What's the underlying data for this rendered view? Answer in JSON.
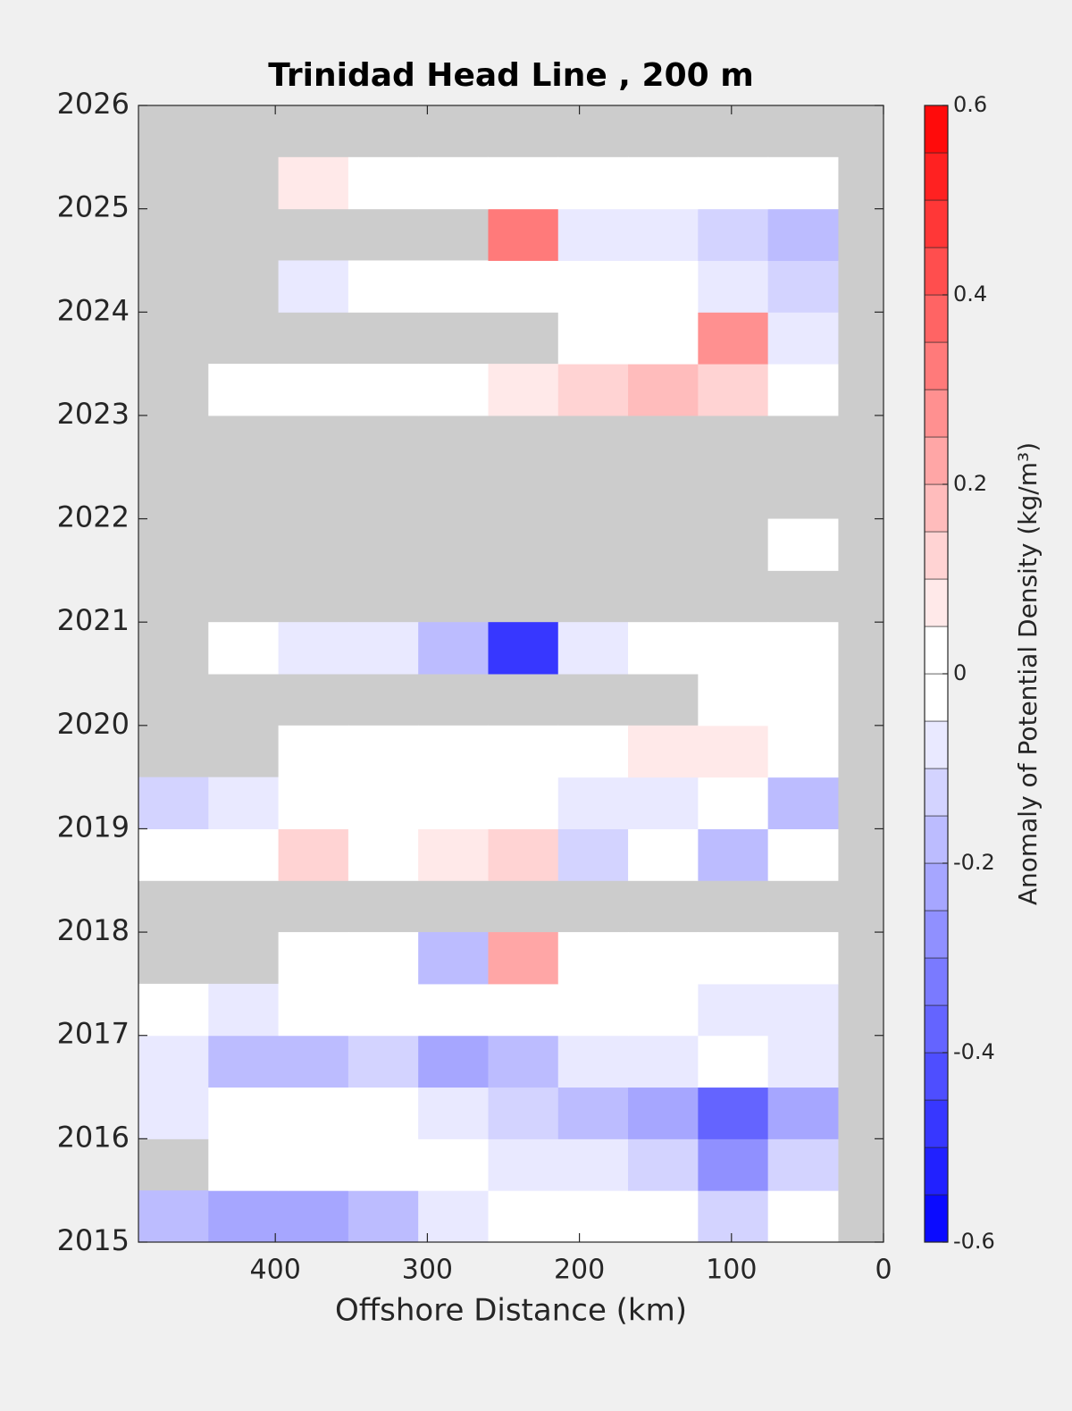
{
  "chart_data": {
    "type": "contour",
    "title": "Trinidad Head Line , 200 m",
    "xlabel": "Offshore Distance (km)",
    "colorbar_label": "Anomaly of Potential Density (kg/m³)",
    "xlim": [
      490,
      0
    ],
    "xticks": [
      400,
      300,
      200,
      100,
      0
    ],
    "ylim": [
      2015,
      2026
    ],
    "yticks": [
      2015,
      2016,
      2017,
      2018,
      2019,
      2020,
      2021,
      2022,
      2023,
      2024,
      2025,
      2026
    ],
    "clim": [
      -0.6,
      0.6
    ],
    "cticks": [
      -0.6,
      -0.4,
      -0.2,
      0,
      0.2,
      0.4,
      0.6
    ],
    "levels": 24,
    "colormap": [
      "#0000ff",
      "#ffffff",
      "#ff0000"
    ],
    "missing_color": "#cccccc",
    "x": [
      467,
      421,
      375,
      329,
      283,
      237,
      191,
      145,
      99,
      53
    ],
    "y": [
      2015.25,
      2015.75,
      2016.25,
      2016.75,
      2017.25,
      2017.75,
      2018.25,
      2018.75,
      2019.25,
      2019.75,
      2020.25,
      2020.75,
      2021.25,
      2021.75,
      2022.25,
      2022.75,
      2023.25,
      2023.75,
      2024.25,
      2024.75,
      2025.25,
      2025.75
    ],
    "z": [
      [
        -0.2,
        -0.25,
        -0.25,
        -0.2,
        -0.1,
        -0.05,
        0,
        0,
        -0.15,
        0
      ],
      [
        null,
        -0.05,
        -0.05,
        0,
        -0.05,
        -0.1,
        -0.1,
        -0.15,
        -0.3,
        -0.15
      ],
      [
        -0.1,
        -0.05,
        0,
        -0.05,
        -0.1,
        -0.15,
        -0.2,
        -0.25,
        -0.4,
        -0.25
      ],
      [
        -0.1,
        -0.2,
        -0.2,
        -0.15,
        -0.25,
        -0.2,
        -0.1,
        -0.1,
        -0.05,
        -0.1
      ],
      [
        -0.05,
        -0.1,
        -0.05,
        -0.05,
        0,
        0,
        -0.05,
        -0.05,
        -0.1,
        -0.1
      ],
      [
        null,
        null,
        -0.05,
        -0.05,
        -0.2,
        0.2,
        -0.05,
        0,
        -0.05,
        -0.05
      ],
      [
        null,
        null,
        null,
        null,
        null,
        null,
        null,
        null,
        null,
        null
      ],
      [
        -0.05,
        -0.05,
        0.1,
        0,
        0.05,
        0.1,
        -0.15,
        -0.05,
        -0.2,
        -0.05
      ],
      [
        -0.15,
        -0.1,
        -0.05,
        -0.05,
        0,
        -0.05,
        -0.1,
        -0.1,
        -0.05,
        -0.2
      ],
      [
        null,
        null,
        0,
        0,
        0,
        -0.05,
        0,
        0.05,
        0.05,
        -0.05
      ],
      [
        null,
        null,
        null,
        null,
        null,
        null,
        null,
        null,
        -0.05,
        -0.05
      ],
      [
        null,
        -0.05,
        -0.1,
        -0.1,
        -0.2,
        -0.5,
        -0.1,
        0,
        0,
        0
      ],
      [
        null,
        null,
        null,
        null,
        null,
        null,
        null,
        null,
        null,
        null
      ],
      [
        null,
        null,
        null,
        null,
        null,
        null,
        null,
        null,
        null,
        0
      ],
      [
        null,
        null,
        null,
        null,
        null,
        null,
        null,
        null,
        null,
        null
      ],
      [
        null,
        null,
        null,
        null,
        null,
        null,
        null,
        null,
        null,
        null
      ],
      [
        null,
        -0.05,
        0,
        -0.05,
        0,
        0.05,
        0.1,
        0.15,
        0.1,
        0
      ],
      [
        null,
        null,
        null,
        null,
        null,
        null,
        0,
        0,
        0.25,
        -0.1
      ],
      [
        null,
        null,
        -0.1,
        -0.05,
        0,
        -0.05,
        0,
        0,
        -0.1,
        -0.15
      ],
      [
        null,
        null,
        null,
        null,
        null,
        0.3,
        -0.1,
        -0.1,
        -0.15,
        -0.2
      ],
      [
        null,
        null,
        0.05,
        0,
        0,
        0,
        0,
        0,
        0,
        0
      ],
      [
        null,
        null,
        null,
        null,
        null,
        null,
        null,
        null,
        null,
        null
      ]
    ]
  }
}
